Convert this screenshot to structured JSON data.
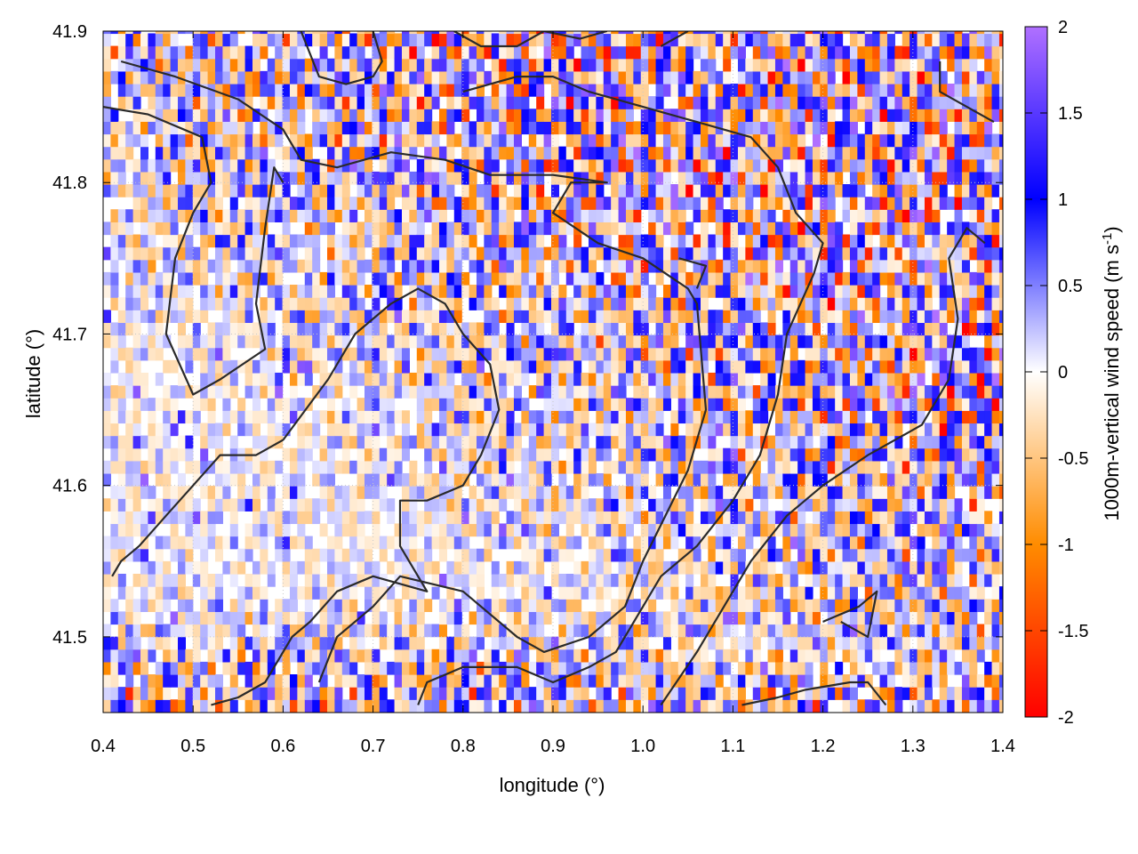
{
  "chart_data": {
    "type": "heatmap",
    "xlabel": "longitude (°)",
    "ylabel": "latitude (°)",
    "colorbar": {
      "label_main": "1000m-vertical wind speed (m s",
      "label_sup": "-1",
      "label_end": ")",
      "range": [
        -2,
        2
      ],
      "ticks": [
        "2",
        "1.5",
        "1",
        "0.5",
        "0",
        "-0.5",
        "-1",
        "-1.5",
        "-2"
      ],
      "tick_values": [
        2,
        1.5,
        1,
        0.5,
        0,
        -0.5,
        -1,
        -1.5,
        -2
      ],
      "colors": [
        {
          "value": -2,
          "color": "#ff0000"
        },
        {
          "value": -1,
          "color": "#ff8c00"
        },
        {
          "value": 0,
          "color": "#ffffff"
        },
        {
          "value": 1,
          "color": "#0000ff"
        },
        {
          "value": 2,
          "color": "#b070ff"
        }
      ]
    },
    "xlim": [
      0.4,
      1.4
    ],
    "ylim": [
      41.45,
      41.9
    ],
    "x_ticks": [
      "0.4",
      "0.5",
      "0.6",
      "0.7",
      "0.8",
      "0.9",
      "1.0",
      "1.1",
      "1.2",
      "1.3",
      "1.4"
    ],
    "x_tick_values": [
      0.4,
      0.5,
      0.6,
      0.7,
      0.8,
      0.9,
      1.0,
      1.1,
      1.2,
      1.3,
      1.4
    ],
    "y_ticks": [
      "41.5",
      "41.6",
      "41.7",
      "41.8",
      "41.9"
    ],
    "y_tick_values": [
      41.5,
      41.6,
      41.7,
      41.8,
      41.9
    ],
    "grid": true,
    "grid_resolution_deg": 0.0083,
    "field_description": "alternating updraft/downdraft cells of about ±2 m/s over the north and east (mountains), near zero over the plain in the south-west",
    "contours": [
      [
        [
          0.42,
          41.88
        ],
        [
          0.48,
          41.87
        ],
        [
          0.55,
          41.855
        ],
        [
          0.6,
          41.835
        ],
        [
          0.62,
          41.815
        ],
        [
          0.66,
          41.81
        ],
        [
          0.72,
          41.82
        ],
        [
          0.78,
          41.815
        ],
        [
          0.83,
          41.805
        ],
        [
          0.9,
          41.805
        ],
        [
          0.96,
          41.8
        ],
        [
          0.92,
          41.8
        ],
        [
          0.9,
          41.78
        ],
        [
          0.95,
          41.76
        ],
        [
          1.0,
          41.75
        ],
        [
          1.05,
          41.73
        ],
        [
          1.06,
          41.72
        ],
        [
          1.07,
          41.65
        ],
        [
          1.05,
          41.61
        ],
        [
          1.0,
          41.55
        ],
        [
          0.98,
          41.52
        ],
        [
          0.94,
          41.5
        ],
        [
          0.89,
          41.49
        ],
        [
          0.86,
          41.5
        ],
        [
          0.8,
          41.53
        ],
        [
          0.73,
          41.54
        ],
        [
          0.7,
          41.52
        ],
        [
          0.66,
          41.5
        ],
        [
          0.64,
          41.47
        ]
      ],
      [
        [
          0.4,
          41.85
        ],
        [
          0.45,
          41.845
        ],
        [
          0.51,
          41.83
        ],
        [
          0.52,
          41.8
        ],
        [
          0.5,
          41.78
        ],
        [
          0.48,
          41.75
        ],
        [
          0.47,
          41.7
        ],
        [
          0.5,
          41.66
        ],
        [
          0.53,
          41.67
        ],
        [
          0.58,
          41.69
        ],
        [
          0.57,
          41.72
        ],
        [
          0.58,
          41.77
        ],
        [
          0.59,
          41.81
        ],
        [
          0.6,
          41.8
        ]
      ],
      [
        [
          0.6,
          41.63
        ],
        [
          0.57,
          41.62
        ],
        [
          0.53,
          41.62
        ],
        [
          0.5,
          41.6
        ],
        [
          0.47,
          41.58
        ],
        [
          0.44,
          41.56
        ],
        [
          0.42,
          41.55
        ],
        [
          0.41,
          41.54
        ]
      ],
      [
        [
          0.6,
          41.63
        ],
        [
          0.65,
          41.67
        ],
        [
          0.68,
          41.7
        ],
        [
          0.72,
          41.72
        ],
        [
          0.75,
          41.73
        ],
        [
          0.78,
          41.72
        ],
        [
          0.8,
          41.7
        ],
        [
          0.83,
          41.68
        ],
        [
          0.84,
          41.65
        ],
        [
          0.82,
          41.62
        ],
        [
          0.8,
          41.6
        ],
        [
          0.76,
          41.59
        ],
        [
          0.73,
          41.59
        ],
        [
          0.73,
          41.56
        ],
        [
          0.76,
          41.53
        ],
        [
          0.7,
          41.54
        ],
        [
          0.66,
          41.53
        ],
        [
          0.63,
          41.51
        ],
        [
          0.61,
          41.5
        ],
        [
          0.58,
          41.47
        ],
        [
          0.55,
          41.46
        ],
        [
          0.52,
          41.455
        ]
      ],
      [
        [
          0.75,
          41.455
        ],
        [
          0.76,
          41.47
        ],
        [
          0.8,
          41.48
        ],
        [
          0.86,
          41.48
        ],
        [
          0.9,
          41.47
        ],
        [
          0.94,
          41.48
        ],
        [
          0.97,
          41.49
        ],
        [
          1.0,
          41.52
        ],
        [
          1.02,
          41.54
        ],
        [
          1.06,
          41.56
        ],
        [
          1.1,
          41.59
        ],
        [
          1.13,
          41.62
        ],
        [
          1.15,
          41.66
        ],
        [
          1.16,
          41.7
        ],
        [
          1.19,
          41.74
        ],
        [
          1.2,
          41.76
        ],
        [
          1.17,
          41.78
        ],
        [
          1.15,
          41.81
        ],
        [
          1.12,
          41.83
        ],
        [
          1.06,
          41.84
        ],
        [
          1.0,
          41.85
        ],
        [
          0.94,
          41.86
        ],
        [
          0.9,
          41.87
        ],
        [
          0.86,
          41.87
        ],
        [
          0.8,
          41.86
        ]
      ],
      [
        [
          1.02,
          41.455
        ],
        [
          1.06,
          41.49
        ],
        [
          1.09,
          41.52
        ],
        [
          1.12,
          41.55
        ],
        [
          1.16,
          41.58
        ],
        [
          1.2,
          41.6
        ],
        [
          1.25,
          41.62
        ],
        [
          1.28,
          41.63
        ],
        [
          1.31,
          41.64
        ],
        [
          1.34,
          41.67
        ],
        [
          1.35,
          41.71
        ],
        [
          1.34,
          41.75
        ],
        [
          1.36,
          41.77
        ],
        [
          1.38,
          41.76
        ]
      ],
      [
        [
          1.11,
          41.455
        ],
        [
          1.15,
          41.46
        ],
        [
          1.18,
          41.465
        ],
        [
          1.23,
          41.47
        ],
        [
          1.25,
          41.47
        ],
        [
          1.27,
          41.455
        ]
      ],
      [
        [
          1.2,
          41.51
        ],
        [
          1.24,
          41.52
        ],
        [
          1.26,
          41.53
        ],
        [
          1.25,
          41.5
        ],
        [
          1.22,
          41.51
        ]
      ],
      [
        [
          1.33,
          41.88
        ],
        [
          1.33,
          41.86
        ],
        [
          1.36,
          41.85
        ],
        [
          1.39,
          41.84
        ]
      ],
      [
        [
          0.62,
          41.9
        ],
        [
          0.64,
          41.87
        ],
        [
          0.67,
          41.865
        ],
        [
          0.7,
          41.87
        ],
        [
          0.71,
          41.88
        ],
        [
          0.7,
          41.9
        ]
      ],
      [
        [
          0.79,
          41.9
        ],
        [
          0.82,
          41.89
        ],
        [
          0.86,
          41.89
        ],
        [
          0.89,
          41.9
        ],
        [
          0.93,
          41.895
        ],
        [
          0.96,
          41.9
        ]
      ],
      [
        [
          1.02,
          41.89
        ],
        [
          1.05,
          41.9
        ]
      ],
      [
        [
          1.04,
          41.75
        ],
        [
          1.07,
          41.745
        ],
        [
          1.06,
          41.73
        ]
      ]
    ]
  }
}
